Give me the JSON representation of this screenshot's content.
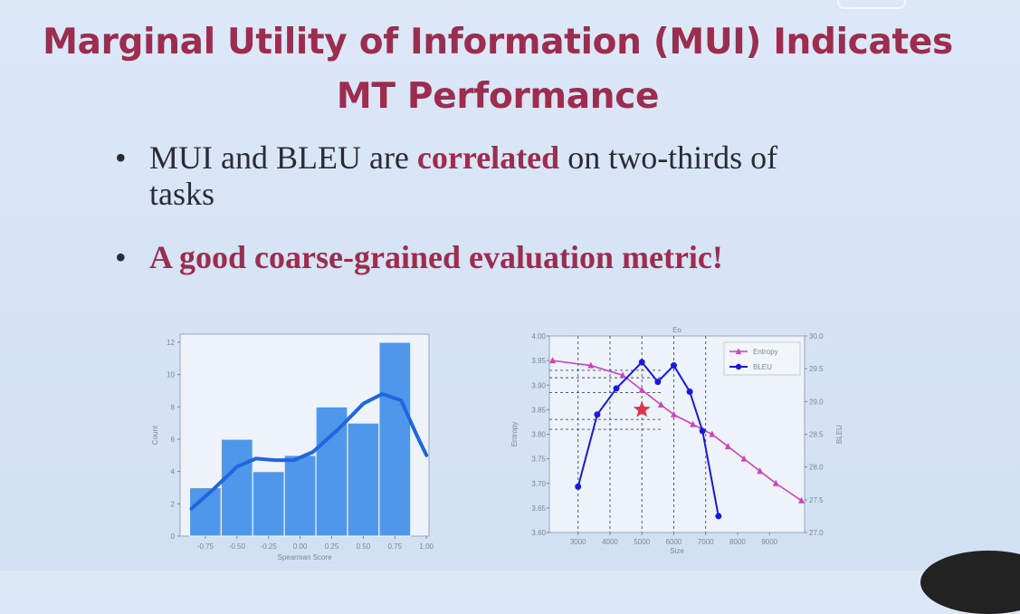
{
  "slide": {
    "title_line1": "Marginal Utility of Information (MUI) Indicates",
    "title_line2": "MT Performance",
    "bullet_char": "•",
    "bullet1": {
      "before": "MUI and BLEU are ",
      "highlight": "correlated",
      "after": " on two-thirds of tasks"
    },
    "bullet2": "A good coarse-grained evaluation metric!"
  },
  "colors": {
    "title": "#9c2d4f",
    "bar": "#4f97ea",
    "kde": "#1f66df",
    "entropy": "#cc44bb",
    "bleu": "#1a1adf",
    "star": "#e2334a"
  },
  "chart_data": [
    {
      "type": "bar",
      "xlabel": "Spearman Score",
      "ylabel": "Count",
      "bins": [
        [
          -0.875,
          -0.625
        ],
        [
          -0.625,
          -0.375
        ],
        [
          -0.375,
          -0.125
        ],
        [
          -0.125,
          0.125
        ],
        [
          0.125,
          0.375
        ],
        [
          0.375,
          0.625
        ],
        [
          0.625,
          0.875
        ]
      ],
      "values": [
        3,
        6,
        4,
        5,
        8,
        7,
        12
      ],
      "kde": [
        [
          -0.86,
          1.7
        ],
        [
          -0.7,
          2.8
        ],
        [
          -0.5,
          4.3
        ],
        [
          -0.35,
          4.8
        ],
        [
          -0.2,
          4.7
        ],
        [
          -0.05,
          4.7
        ],
        [
          0.1,
          5.2
        ],
        [
          0.3,
          6.6
        ],
        [
          0.5,
          8.2
        ],
        [
          0.65,
          8.8
        ],
        [
          0.8,
          8.4
        ],
        [
          0.92,
          6.3
        ],
        [
          1.0,
          5.0
        ]
      ],
      "xticks": [
        "-0.75",
        "-0.50",
        "-0.25",
        "0.00",
        "0.25",
        "0.50",
        "0.75",
        "1.00"
      ],
      "yticks": [
        "0",
        "2",
        "4",
        "6",
        "8",
        "10",
        "12"
      ],
      "xlim": [
        -0.95,
        1.02
      ],
      "ylim": [
        0,
        12.5
      ]
    },
    {
      "type": "line",
      "title": "Eo",
      "xlabel": "Size",
      "ylabel_left": "Entropy",
      "ylabel_right": "BLEU",
      "xticks": [
        "3000",
        "4000",
        "5000",
        "6000",
        "7000",
        "8000",
        "9000"
      ],
      "yticks_left": [
        "3.60",
        "3.65",
        "3.70",
        "3.75",
        "3.80",
        "3.85",
        "3.90",
        "3.95",
        "4.00"
      ],
      "yticks_right": [
        "27.0",
        "27.5",
        "28.0",
        "28.5",
        "29.0",
        "29.5",
        "30.0"
      ],
      "xlim": [
        2100,
        10100
      ],
      "ylim_left": [
        3.6,
        4.0
      ],
      "ylim_right": [
        27.0,
        30.0
      ],
      "legend": [
        "Entropy",
        "BLEU"
      ],
      "legend_position": "top-right",
      "series": [
        {
          "name": "Entropy",
          "axis": "left",
          "x": [
            2200,
            3400,
            4400,
            5000,
            5600,
            6000,
            6600,
            7200,
            7700,
            8200,
            8700,
            9200,
            10000
          ],
          "y": [
            3.95,
            3.94,
            3.92,
            3.89,
            3.86,
            3.84,
            3.82,
            3.8,
            3.775,
            3.75,
            3.725,
            3.7,
            3.665
          ]
        },
        {
          "name": "BLEU",
          "axis": "right",
          "x": [
            3000,
            3600,
            4200,
            5000,
            5500,
            6000,
            6500,
            6900,
            7400
          ],
          "y": [
            27.7,
            28.8,
            29.2,
            29.6,
            29.3,
            29.55,
            29.15,
            28.55,
            27.25
          ]
        }
      ],
      "highlight": {
        "x": 5000,
        "y": 3.85
      },
      "ref_x": [
        3000,
        4000,
        5000,
        6000,
        7000
      ],
      "ref_y": [
        3.93,
        3.915,
        3.885,
        3.83,
        3.81
      ]
    }
  ]
}
